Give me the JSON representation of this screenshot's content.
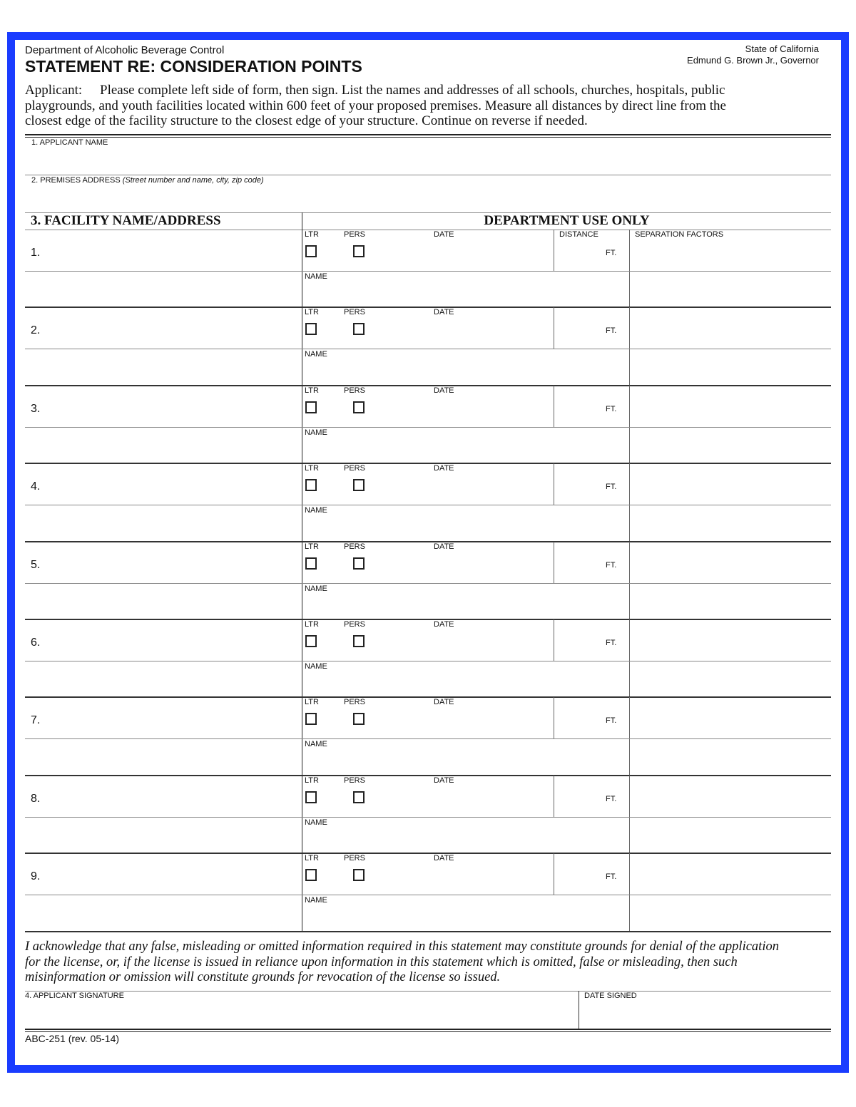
{
  "header": {
    "department": "Department of Alcoholic Beverage Control",
    "title": "STATEMENT RE: CONSIDERATION POINTS",
    "state": "State of California",
    "governor": "Edmund G. Brown Jr., Governor",
    "instructions_lead": "Applicant:",
    "instructions_lines": [
      "Please complete left side of form, then sign.  List the names and addresses of all schools, churches, hospitals, public",
      "playgrounds, and youth facilities located within 600 feet of your proposed premises.  Measure all distances by direct line from the",
      "closest edge of the facility structure to the closest edge of your structure.  Continue on reverse if needed."
    ]
  },
  "fields": {
    "applicant_name_label": "1.  APPLICANT NAME",
    "premises_label": "2.  PREMISES ADDRESS",
    "premises_hint": "(Street number and name, city, zip code)"
  },
  "table": {
    "facility_header": "3.  FACILITY NAME/ADDRESS",
    "dept_header": "DEPARTMENT USE ONLY",
    "ltr": "LTR",
    "pers": "PERS",
    "date": "DATE",
    "distance": "DISTANCE",
    "ft": "FT.",
    "separation": "SEPARATION FACTORS",
    "name": "NAME",
    "rows": [
      "1.",
      "2.",
      "3.",
      "4.",
      "5.",
      "6.",
      "7.",
      "8.",
      "9."
    ]
  },
  "footer": {
    "acknowledgement": [
      "I acknowledge that any false, misleading or omitted information required in this statement may constitute grounds for denial of the application",
      "for the license, or, if the license is issued in reliance upon information in this statement which is omitted, false or misleading, then such",
      "misinformation or omission will constitute grounds for revocation of the license so issued."
    ],
    "signature_label": "4.  APPLICANT SIGNATURE",
    "date_signed_label": "DATE SIGNED",
    "form_id": "ABC-251 (rev. 05-14)"
  },
  "colors": {
    "border": "#1a3cff"
  }
}
